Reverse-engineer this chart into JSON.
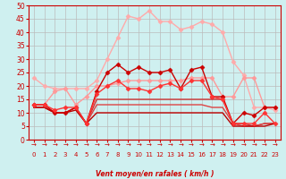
{
  "xlabel": "Vent moyen/en rafales ( km/h )",
  "background_color": "#cff0f0",
  "grid_color": "#bbbbbb",
  "xlim": [
    -0.5,
    23.5
  ],
  "ylim": [
    0,
    50
  ],
  "yticks": [
    0,
    5,
    10,
    15,
    20,
    25,
    30,
    35,
    40,
    45,
    50
  ],
  "xticks": [
    0,
    1,
    2,
    3,
    4,
    5,
    6,
    7,
    8,
    9,
    10,
    11,
    12,
    13,
    14,
    15,
    16,
    17,
    18,
    19,
    20,
    21,
    22,
    23
  ],
  "series": [
    {
      "y": [
        23,
        20,
        19,
        19,
        19,
        19,
        22,
        30,
        38,
        46,
        45,
        48,
        44,
        44,
        41,
        42,
        44,
        43,
        40,
        29,
        24,
        12,
        12,
        11
      ],
      "color": "#ffaaaa",
      "marker": "D",
      "markersize": 2.5,
      "linewidth": 1.0,
      "zorder": 3
    },
    {
      "y": [
        13,
        13,
        18,
        19,
        13,
        16,
        20,
        20,
        21,
        22,
        22,
        22,
        22,
        22,
        22,
        23,
        23,
        23,
        16,
        16,
        23,
        23,
        12,
        12
      ],
      "color": "#ff9999",
      "marker": "D",
      "markersize": 2.5,
      "linewidth": 1.0,
      "zorder": 3
    },
    {
      "y": [
        13,
        13,
        10,
        10,
        12,
        6,
        18,
        25,
        28,
        25,
        27,
        25,
        25,
        26,
        19,
        26,
        27,
        16,
        16,
        6,
        10,
        9,
        12,
        12
      ],
      "color": "#cc0000",
      "marker": "D",
      "markersize": 2.5,
      "linewidth": 1.0,
      "zorder": 4
    },
    {
      "y": [
        13,
        13,
        11,
        12,
        12,
        6,
        17,
        20,
        22,
        19,
        19,
        18,
        20,
        21,
        19,
        22,
        22,
        16,
        15,
        6,
        6,
        6,
        10,
        6
      ],
      "color": "#ff3333",
      "marker": "D",
      "markersize": 2.5,
      "linewidth": 1.0,
      "zorder": 4
    },
    {
      "y": [
        12,
        12,
        10,
        10,
        12,
        6,
        15,
        15,
        15,
        15,
        15,
        15,
        15,
        15,
        15,
        15,
        15,
        15,
        15,
        6,
        6,
        5,
        6,
        6
      ],
      "color": "#cc3333",
      "marker": null,
      "markersize": 0,
      "linewidth": 1.0,
      "zorder": 2
    },
    {
      "y": [
        12,
        12,
        10,
        10,
        12,
        6,
        13,
        13,
        13,
        13,
        13,
        13,
        13,
        13,
        13,
        13,
        13,
        12,
        12,
        6,
        5,
        5,
        6,
        6
      ],
      "color": "#dd4444",
      "marker": null,
      "markersize": 0,
      "linewidth": 1.0,
      "zorder": 2
    },
    {
      "y": [
        12,
        12,
        10,
        10,
        11,
        6,
        10,
        10,
        10,
        10,
        10,
        10,
        10,
        10,
        10,
        10,
        10,
        10,
        10,
        5,
        5,
        5,
        5,
        6
      ],
      "color": "#bb0000",
      "marker": null,
      "markersize": 0,
      "linewidth": 1.0,
      "zorder": 2
    }
  ]
}
